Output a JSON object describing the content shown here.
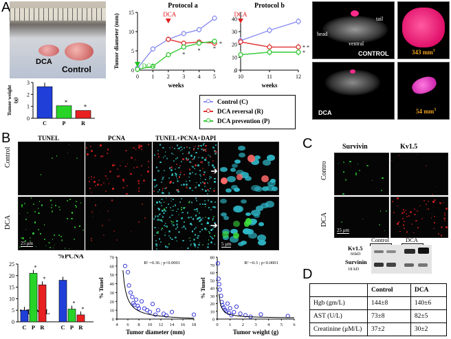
{
  "panels": {
    "a": "A",
    "b": "B",
    "c": "C",
    "d": "D"
  },
  "photo": {
    "dca": "DCA",
    "control": "Control"
  },
  "tumor_weight": {
    "ylabel": "Tumor weight (g) (protocol a)"
  },
  "protocol_a": {
    "title": "Protocol a",
    "ylabel": "Tumor diameter (mm)",
    "xlabel": "weeks",
    "dca_red": "DCA",
    "dca_green": "DCA"
  },
  "protocol_b": {
    "title": "Protocol b",
    "xlabel": "weeks",
    "dca_red": "DCA"
  },
  "legend": [
    {
      "label": "Control (C)",
      "color": "#8a8ef0"
    },
    {
      "label": "DCA reversal (R)",
      "color": "#e03030"
    },
    {
      "label": "DCA prevention (P)",
      "color": "#35c835"
    }
  ],
  "mri": {
    "head": "head",
    "tail": "tail",
    "ventral": "ventral",
    "control": "CONTROL",
    "dca": "DCA",
    "vol_control": "343 mm",
    "vol_dca": "54 mm",
    "sup": "3"
  },
  "panel_b": {
    "col_tunel": "TUNEL",
    "col_pcna": "PCNA",
    "col_merge": "TUNEL+PCNA+DAPI",
    "row_control": "Control",
    "row_dca": "DCA",
    "scale1": "25 μm",
    "scale2": "5 μm"
  },
  "pct_bars": {
    "tunel": "%TUNEL",
    "pcna": "%PCNA"
  },
  "scatter1": {
    "stat": "R² =0.36 ; p<0.0001",
    "xlabel": "Tumor diameter (mm)",
    "ylabel": "% Tunel"
  },
  "scatter2": {
    "stat": "R² =0.3 ; p<0.0001",
    "xlabel": "Tumor weight (g)",
    "ylabel": "% Tunel"
  },
  "panel_c": {
    "col_survivin": "Survivin",
    "col_kv": "Kv1.5",
    "row_control": "Contro",
    "row_dca": "DCA",
    "scale": "25 μm",
    "blot_control": "Control",
    "blot_dca": "DCA",
    "kv_label": "Kv1.5",
    "kv_kd": "66kD",
    "surv_label": "Survinin",
    "surv_kd": "18 kD"
  },
  "table_d": {
    "headers": [
      "",
      "Control",
      "DCA"
    ],
    "rows": [
      [
        "Hgb (gm/L)",
        "144±8",
        "140±6"
      ],
      [
        "AST (U/L)",
        "73±8",
        "82±5"
      ],
      [
        "Creatinine (μM/L)",
        "37±2",
        "30±2"
      ]
    ]
  },
  "chart_data": [
    {
      "type": "bar",
      "name": "tumor-weight",
      "categories": [
        "C",
        "P",
        "R"
      ],
      "values": [
        2.65,
        1.05,
        0.65
      ],
      "colors": [
        "#1f3fd8",
        "#28d428",
        "#e82020"
      ],
      "ylim": [
        0,
        3
      ],
      "yticks": [
        0,
        1,
        2,
        3
      ],
      "ylabel": "Tumor weight (g) (protocol a)"
    },
    {
      "type": "line",
      "name": "protocol-a",
      "title": "Protocol a",
      "xlabel": "weeks",
      "ylabel": "Tumor diameter (mm)",
      "xlim": [
        0,
        5
      ],
      "ylim": [
        0,
        15
      ],
      "xticks": [
        0,
        1,
        2,
        3,
        4,
        5
      ],
      "yticks": [
        0,
        5,
        10,
        15
      ],
      "series": [
        {
          "name": "Control (C)",
          "color": "#8a8ef0",
          "x": [
            0,
            1,
            2,
            3,
            4,
            5
          ],
          "y": [
            0.5,
            5.5,
            8,
            9.5,
            10.5,
            13.5
          ]
        },
        {
          "name": "DCA reversal (R)",
          "color": "#e03030",
          "x": [
            2,
            3,
            4,
            5
          ],
          "y": [
            8,
            7,
            7.3,
            7
          ]
        },
        {
          "name": "DCA prevention (P)",
          "color": "#35c835",
          "x": [
            0,
            1,
            2,
            3,
            4,
            5
          ],
          "y": [
            0.2,
            1,
            4,
            6,
            7,
            7.5
          ]
        }
      ]
    },
    {
      "type": "line",
      "name": "protocol-b",
      "title": "Protocol b",
      "xlabel": "weeks",
      "xlim": [
        10,
        12
      ],
      "ylim": [
        0,
        45
      ],
      "xticks": [
        10,
        11,
        12
      ],
      "yticks": [
        0,
        10,
        20,
        30,
        40
      ],
      "series": [
        {
          "name": "Control (C)",
          "color": "#8a8ef0",
          "x": [
            10,
            11,
            12
          ],
          "y": [
            23,
            31,
            38
          ]
        },
        {
          "name": "DCA reversal (R)",
          "color": "#e03030",
          "x": [
            10,
            11,
            12
          ],
          "y": [
            22,
            18,
            18
          ]
        },
        {
          "name": "DCA prevention (P)",
          "color": "#35c835",
          "x": [
            10,
            11,
            12
          ],
          "y": [
            12,
            14,
            14
          ]
        }
      ]
    },
    {
      "type": "bar",
      "name": "pct-tunel-pcna",
      "groups": [
        {
          "label": "%TUNEL",
          "categories": [
            "C",
            "P",
            "R"
          ],
          "values": [
            5,
            21,
            16
          ]
        },
        {
          "label": "%PCNA",
          "categories": [
            "C",
            "P",
            "R"
          ],
          "values": [
            18,
            5.5,
            3
          ]
        }
      ],
      "colors": [
        "#1f3fd8",
        "#28d428",
        "#e82020"
      ],
      "ylim": [
        0,
        25
      ],
      "yticks": [
        0,
        5,
        10,
        15,
        20,
        25
      ]
    },
    {
      "type": "scatter",
      "name": "tunel-vs-diameter",
      "xlabel": "Tumor diameter (mm)",
      "ylabel": "% Tunel",
      "xlim": [
        4,
        18
      ],
      "ylim": [
        0,
        70
      ],
      "xticks": [
        4,
        6,
        8,
        10,
        12,
        14,
        16,
        18
      ],
      "yticks": [
        0,
        10,
        20,
        30,
        40,
        50,
        60,
        70
      ],
      "points": [
        [
          5.5,
          60
        ],
        [
          6,
          53
        ],
        [
          6.2,
          38
        ],
        [
          6.5,
          30
        ],
        [
          6.8,
          25
        ],
        [
          7,
          18
        ],
        [
          7.2,
          16
        ],
        [
          7.5,
          22
        ],
        [
          7.8,
          15
        ],
        [
          8,
          12
        ],
        [
          8.5,
          20
        ],
        [
          9,
          12
        ],
        [
          9.5,
          10
        ],
        [
          10,
          8
        ],
        [
          10.5,
          17
        ],
        [
          11,
          5
        ],
        [
          11.5,
          10
        ],
        [
          12.5,
          6
        ],
        [
          13,
          4
        ],
        [
          14,
          8
        ],
        [
          18,
          5
        ]
      ],
      "fit": "hyperbolic",
      "annotation": "R² =0.36 ; p<0.0001"
    },
    {
      "type": "scatter",
      "name": "tunel-vs-weight",
      "xlabel": "Tumor weight (g)",
      "ylabel": "% Tunel",
      "xlim": [
        0,
        6
      ],
      "ylim": [
        0,
        80
      ],
      "xticks": [
        0,
        1,
        2,
        3,
        4,
        5,
        6
      ],
      "yticks": [
        0,
        10,
        20,
        30,
        40,
        50,
        60,
        70,
        80
      ],
      "points": [
        [
          0.05,
          72
        ],
        [
          0.1,
          52
        ],
        [
          0.15,
          45
        ],
        [
          0.2,
          38
        ],
        [
          0.3,
          30
        ],
        [
          0.35,
          22
        ],
        [
          0.4,
          18
        ],
        [
          0.5,
          15
        ],
        [
          0.6,
          12
        ],
        [
          0.7,
          10
        ],
        [
          0.8,
          20
        ],
        [
          0.9,
          8
        ],
        [
          1.0,
          14
        ],
        [
          1.1,
          5
        ],
        [
          1.3,
          9
        ],
        [
          1.5,
          16
        ],
        [
          1.8,
          7
        ],
        [
          2.2,
          5
        ],
        [
          2.6,
          3
        ],
        [
          3.4,
          6
        ],
        [
          5.5,
          4
        ]
      ],
      "fit": "hyperbolic",
      "annotation": "R² =0.3 ; p<0.0001"
    }
  ]
}
